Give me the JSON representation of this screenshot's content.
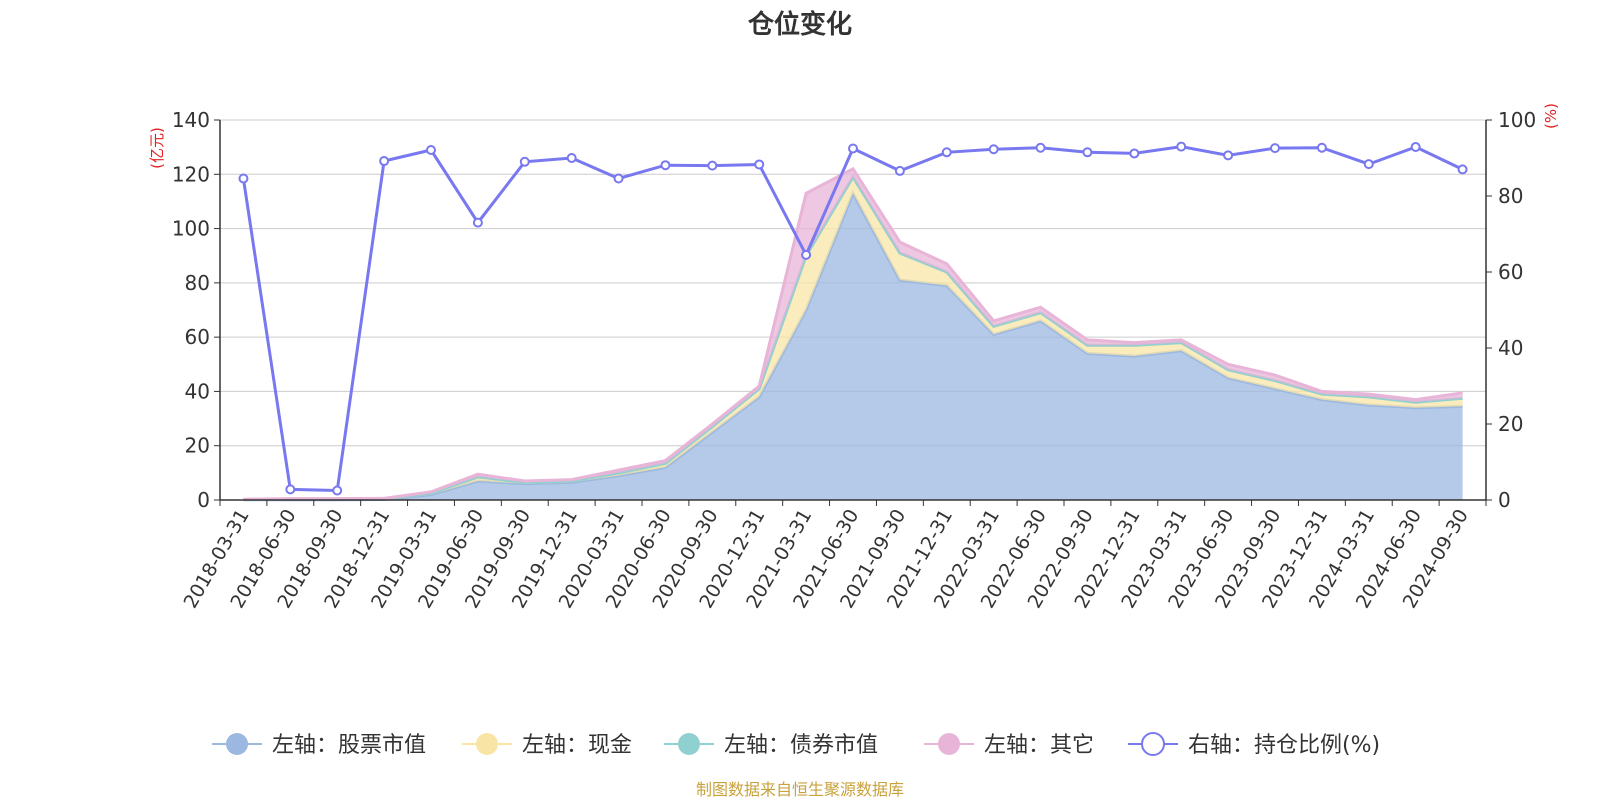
{
  "source_note": "制图数据来自恒生聚源数据库",
  "chart_data": {
    "type": "area",
    "title": "仓位变化",
    "left_axis_label": "(亿元)",
    "right_axis_label": "(%)",
    "ylim_left": [
      0,
      140
    ],
    "ylim_right": [
      0,
      100
    ],
    "yticks_left": [
      0,
      20,
      40,
      60,
      80,
      100,
      120,
      140
    ],
    "yticks_right": [
      0,
      20,
      40,
      60,
      80,
      100
    ],
    "grid": true,
    "legend_position": "bottom",
    "x": [
      "2018-03-31",
      "2018-06-30",
      "2018-09-30",
      "2018-12-31",
      "2019-03-31",
      "2019-06-30",
      "2019-09-30",
      "2019-12-31",
      "2020-03-31",
      "2020-06-30",
      "2020-09-30",
      "2020-12-31",
      "2021-03-31",
      "2021-06-30",
      "2021-09-30",
      "2021-12-31",
      "2022-03-31",
      "2022-06-30",
      "2022-09-30",
      "2022-12-31",
      "2023-03-31",
      "2023-06-30",
      "2023-09-30",
      "2023-12-31",
      "2024-03-31",
      "2024-06-30",
      "2024-09-30"
    ],
    "series": [
      {
        "name": "左轴：股票市值",
        "axis": "left",
        "kind": "area",
        "color": "#9bb8e0",
        "values": [
          0.1,
          0.1,
          0.1,
          0.2,
          2,
          7,
          6,
          6.5,
          9,
          12,
          25,
          38,
          70,
          113,
          81,
          79,
          61,
          66,
          54,
          53,
          55,
          45,
          41,
          37,
          35,
          34,
          34.5
        ]
      },
      {
        "name": "左轴：现金",
        "axis": "left",
        "kind": "area",
        "color": "#f8e5a5",
        "values": [
          0.1,
          0.3,
          0.3,
          0.3,
          0.5,
          1.5,
          0.5,
          0.5,
          1,
          1.5,
          2,
          3,
          20,
          6,
          10,
          5,
          3,
          3,
          3,
          4,
          3,
          3,
          3,
          2,
          3,
          2,
          3
        ]
      },
      {
        "name": "左轴：债券市值",
        "axis": "left",
        "kind": "area",
        "color": "#8fd0d0",
        "values": [
          0,
          0,
          0,
          0,
          0,
          0,
          0,
          0,
          0,
          0,
          0,
          0,
          0,
          0,
          0,
          0,
          0,
          0,
          0,
          0,
          0,
          0,
          0,
          0,
          0,
          0,
          0
        ]
      },
      {
        "name": "左轴：其它",
        "axis": "left",
        "kind": "area",
        "color": "#e8b4d8",
        "values": [
          0.1,
          0.1,
          0.1,
          0.1,
          0.5,
          1,
          0.5,
          0.5,
          1,
          1,
          1,
          1,
          23,
          3,
          4,
          3,
          2,
          2,
          2,
          1,
          1,
          2,
          2,
          1,
          1,
          1,
          2
        ]
      },
      {
        "name": "右轴：持仓比例(%)",
        "axis": "right",
        "kind": "line",
        "color": "#7878f0",
        "values": [
          84.6,
          2.8,
          2.5,
          89.2,
          92.1,
          73,
          89,
          90,
          84.6,
          88.1,
          88,
          88.3,
          64.5,
          92.5,
          86.6,
          91.5,
          92.3,
          92.7,
          91.5,
          91.2,
          93,
          90.7,
          92.6,
          92.7,
          88.4,
          92.9,
          87
        ]
      }
    ]
  }
}
